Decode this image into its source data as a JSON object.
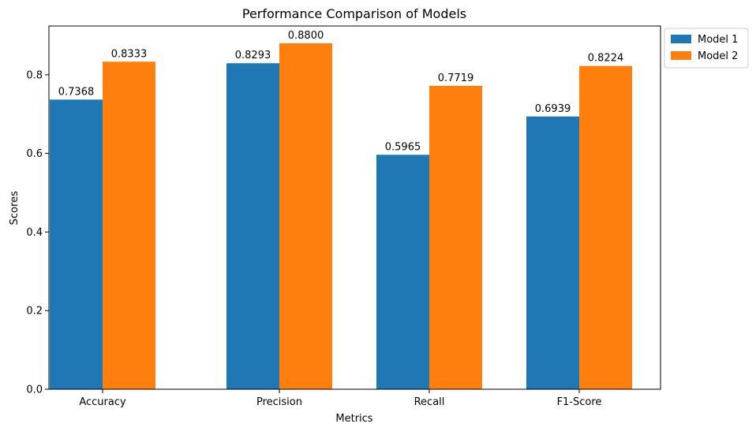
{
  "chart_data": {
    "type": "bar",
    "title": "Performance Comparison of Models",
    "xlabel": "Metrics",
    "ylabel": "Scores",
    "categories": [
      "Accuracy",
      "Precision",
      "Recall",
      "F1-Score"
    ],
    "series": [
      {
        "name": "Model 1",
        "color": "#1f77b4",
        "values": [
          0.7368,
          0.8293,
          0.5965,
          0.6939
        ],
        "labels": [
          "0.7368",
          "0.8293",
          "0.5965",
          "0.6939"
        ]
      },
      {
        "name": "Model 2",
        "color": "#ff7f0e",
        "values": [
          0.8333,
          0.88,
          0.7719,
          0.8224
        ],
        "labels": [
          "0.8333",
          "0.8800",
          "0.7719",
          "0.8224"
        ]
      }
    ],
    "ylim": [
      0,
      0.924
    ],
    "yticks": [
      0.0,
      0.2,
      0.4,
      0.6,
      0.8
    ],
    "ytick_labels": [
      "0.0",
      "0.2",
      "0.4",
      "0.6",
      "0.8"
    ],
    "grid": false,
    "legend_position": "outside top-right"
  }
}
